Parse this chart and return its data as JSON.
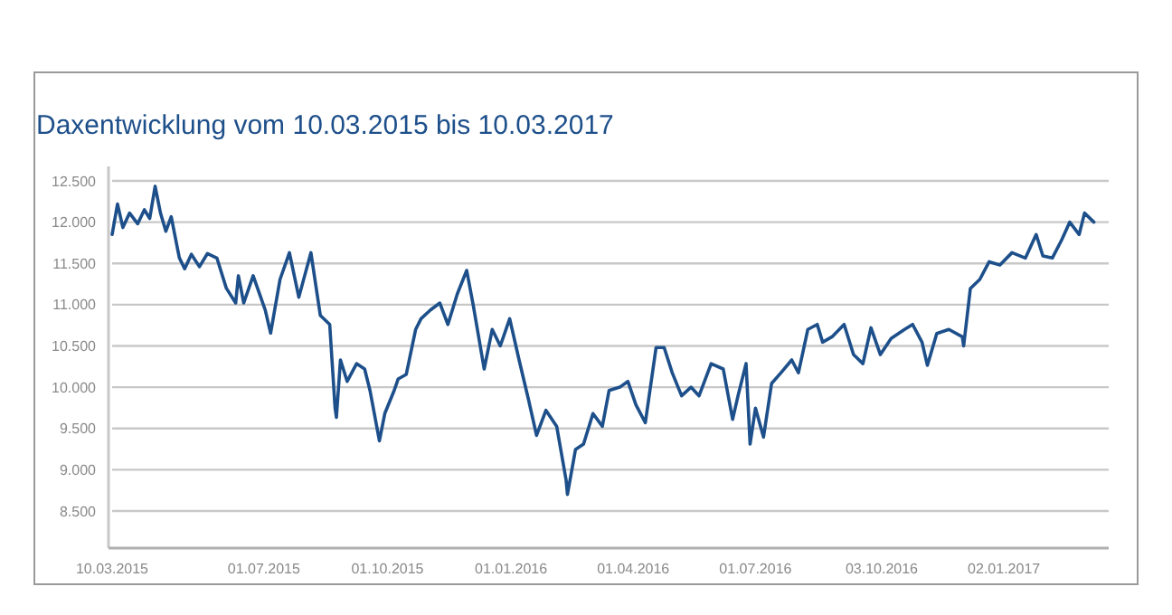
{
  "chart_data": {
    "type": "line",
    "title": "Daxentwicklung vom 10.03.2015 bis 10.03.2017",
    "x": [
      "2015-03-10",
      "2015-03-14",
      "2015-03-18",
      "2015-03-23",
      "2015-03-29",
      "2015-04-03",
      "2015-04-07",
      "2015-04-11",
      "2015-04-15",
      "2015-04-19",
      "2015-04-23",
      "2015-04-29",
      "2015-05-03",
      "2015-05-08",
      "2015-05-14",
      "2015-05-20",
      "2015-05-27",
      "2015-06-03",
      "2015-06-10",
      "2015-06-12",
      "2015-06-16",
      "2015-06-23",
      "2015-07-02",
      "2015-07-06",
      "2015-07-13",
      "2015-07-20",
      "2015-07-27",
      "2015-08-05",
      "2015-08-12",
      "2015-08-19",
      "2015-08-23",
      "2015-08-24",
      "2015-08-27",
      "2015-09-01",
      "2015-09-08",
      "2015-09-14",
      "2015-09-18",
      "2015-09-25",
      "2015-09-29",
      "2015-10-06",
      "2015-10-09",
      "2015-10-15",
      "2015-10-22",
      "2015-10-26",
      "2015-11-02",
      "2015-11-09",
      "2015-11-15",
      "2015-11-22",
      "2015-11-29",
      "2015-12-04",
      "2015-12-12",
      "2015-12-18",
      "2015-12-24",
      "2015-12-31",
      "2016-01-07",
      "2016-01-14",
      "2016-01-20",
      "2016-01-27",
      "2016-02-04",
      "2016-02-11",
      "2016-02-12",
      "2016-02-18",
      "2016-02-24",
      "2016-03-02",
      "2016-03-09",
      "2016-03-14",
      "2016-03-22",
      "2016-03-28",
      "2016-04-03",
      "2016-04-10",
      "2016-04-18",
      "2016-04-24",
      "2016-04-30",
      "2016-05-07",
      "2016-05-14",
      "2016-05-20",
      "2016-05-29",
      "2016-06-07",
      "2016-06-14",
      "2016-06-18",
      "2016-06-24",
      "2016-06-27",
      "2016-07-01",
      "2016-07-07",
      "2016-07-13",
      "2016-07-20",
      "2016-07-28",
      "2016-08-02",
      "2016-08-09",
      "2016-08-16",
      "2016-08-20",
      "2016-08-27",
      "2016-09-05",
      "2016-09-12",
      "2016-09-19",
      "2016-09-25",
      "2016-10-02",
      "2016-10-10",
      "2016-10-20",
      "2016-10-26",
      "2016-11-02",
      "2016-11-06",
      "2016-11-13",
      "2016-11-22",
      "2016-12-02",
      "2016-12-03",
      "2016-12-08",
      "2016-12-15",
      "2016-12-22",
      "2016-12-30",
      "2017-01-08",
      "2017-01-18",
      "2017-01-26",
      "2017-01-31",
      "2017-02-07",
      "2017-02-14",
      "2017-02-20",
      "2017-02-27",
      "2017-03-03",
      "2017-03-10"
    ],
    "series": [
      {
        "color": "#1d4f8a",
        "values": [
          11850,
          12220,
          11935,
          12110,
          11980,
          12150,
          12045,
          12435,
          12110,
          11890,
          12065,
          11570,
          11435,
          11610,
          11460,
          11620,
          11565,
          11200,
          11020,
          11350,
          11020,
          11350,
          10935,
          10655,
          11305,
          11630,
          11090,
          11630,
          10870,
          10760,
          9745,
          9635,
          10330,
          10070,
          10285,
          10220,
          9960,
          9350,
          9680,
          9960,
          10100,
          10155,
          10700,
          10830,
          10935,
          11020,
          10760,
          11130,
          11415,
          10980,
          10220,
          10700,
          10500,
          10830,
          10330,
          9850,
          9415,
          9720,
          9525,
          8875,
          8700,
          9245,
          9310,
          9680,
          9525,
          9960,
          10000,
          10070,
          9785,
          9570,
          10480,
          10480,
          10175,
          9895,
          10000,
          9895,
          10285,
          10220,
          9610,
          9895,
          10285,
          9310,
          9745,
          9395,
          10045,
          10175,
          10330,
          10175,
          10700,
          10760,
          10545,
          10610,
          10760,
          10395,
          10285,
          10720,
          10395,
          10590,
          10700,
          10760,
          10545,
          10265,
          10650,
          10700,
          10610,
          10500,
          11195,
          11305,
          11520,
          11480,
          11630,
          11565,
          11850,
          11590,
          11565,
          11785,
          12000,
          11850,
          12110,
          12000
        ]
      }
    ],
    "xlim": [
      "2015-03-10",
      "2017-03-21"
    ],
    "xticks": [
      {
        "value": "2015-03-10",
        "label": "10.03.2015"
      },
      {
        "value": "2015-07-01",
        "label": "01.07.2015"
      },
      {
        "value": "2015-10-01",
        "label": "01.10.2015"
      },
      {
        "value": "2016-01-01",
        "label": "01.01.2016"
      },
      {
        "value": "2016-04-01",
        "label": "01.04.2016"
      },
      {
        "value": "2016-07-01",
        "label": "01.07.2016"
      },
      {
        "value": "2016-10-03",
        "label": "03.10.2016"
      },
      {
        "value": "2017-01-02",
        "label": "02.01.2017"
      }
    ],
    "ylim": [
      8050,
      12500
    ],
    "yticks": [
      {
        "value": 8500,
        "label": "8.500"
      },
      {
        "value": 9000,
        "label": "9.000"
      },
      {
        "value": 9500,
        "label": "9.500"
      },
      {
        "value": 10000,
        "label": "10.000"
      },
      {
        "value": 10500,
        "label": "10.500"
      },
      {
        "value": 11000,
        "label": "11.000"
      },
      {
        "value": 11500,
        "label": "11.500"
      },
      {
        "value": 12000,
        "label": "12.000"
      },
      {
        "value": 12500,
        "label": "12.500"
      }
    ],
    "grid": "y",
    "marker": "none",
    "line_style": "solid"
  }
}
